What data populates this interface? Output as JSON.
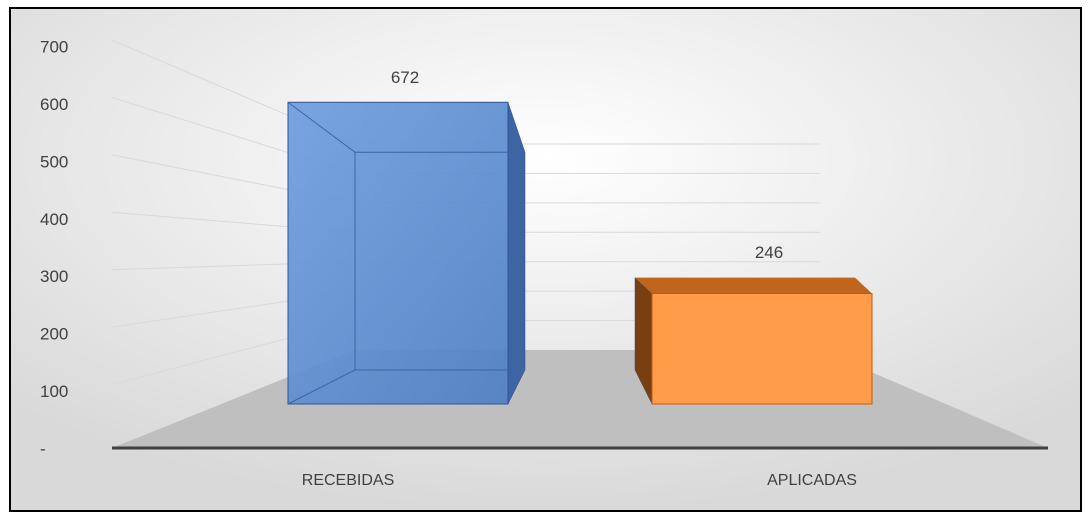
{
  "chart_data": {
    "type": "bar3d",
    "categories": [
      "RECEBIDAS",
      "APLICADAS"
    ],
    "values": [
      672,
      246
    ],
    "colors": [
      "#5b8fd6",
      "#ff9c4a"
    ],
    "ylim": [
      0,
      700
    ],
    "yticks": [
      {
        "value": 0,
        "label": "-"
      },
      100,
      200,
      300,
      400,
      500,
      600,
      700
    ],
    "grid": true
  }
}
